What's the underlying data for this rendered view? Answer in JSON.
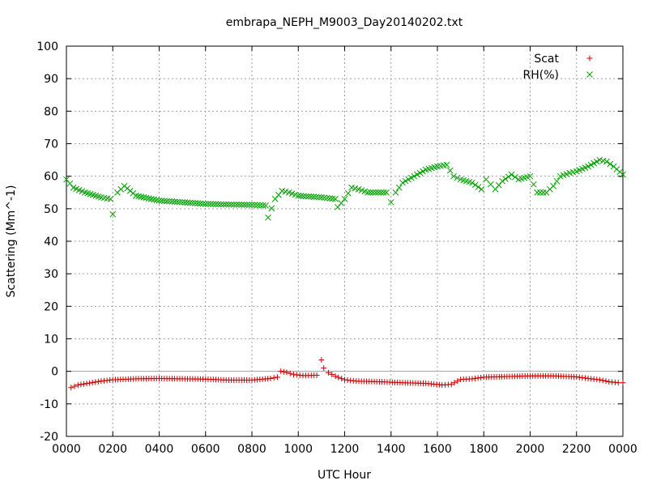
{
  "chart_data": {
    "type": "scatter",
    "title": "embrapa_NEPH_M9003_Day20140202.txt",
    "xlabel": "UTC Hour",
    "ylabel": "Scattering (Mm^-1)",
    "xlim": [
      0,
      24
    ],
    "ylim": [
      -20,
      100
    ],
    "grid": true,
    "legend_position": "top-right",
    "x_ticks": [
      {
        "value": 0,
        "label": "0000"
      },
      {
        "value": 2,
        "label": "0200"
      },
      {
        "value": 4,
        "label": "0400"
      },
      {
        "value": 6,
        "label": "0600"
      },
      {
        "value": 8,
        "label": "0800"
      },
      {
        "value": 10,
        "label": "1000"
      },
      {
        "value": 12,
        "label": "1200"
      },
      {
        "value": 14,
        "label": "1400"
      },
      {
        "value": 16,
        "label": "1600"
      },
      {
        "value": 18,
        "label": "1800"
      },
      {
        "value": 20,
        "label": "2000"
      },
      {
        "value": 22,
        "label": "2200"
      },
      {
        "value": 24,
        "label": "0000"
      }
    ],
    "y_ticks": [
      {
        "value": -20,
        "label": "-20"
      },
      {
        "value": -10,
        "label": "-10"
      },
      {
        "value": 0,
        "label": "0"
      },
      {
        "value": 10,
        "label": "10"
      },
      {
        "value": 20,
        "label": "20"
      },
      {
        "value": 30,
        "label": "30"
      },
      {
        "value": 40,
        "label": "40"
      },
      {
        "value": 50,
        "label": "50"
      },
      {
        "value": 60,
        "label": "60"
      },
      {
        "value": 70,
        "label": "70"
      },
      {
        "value": 80,
        "label": "80"
      },
      {
        "value": 90,
        "label": "90"
      },
      {
        "value": 100,
        "label": "100"
      }
    ],
    "series": [
      {
        "name": "Scat",
        "marker": "+",
        "color": "#cc0000",
        "points": [
          [
            0.2,
            -5
          ],
          [
            0.5,
            -4.2
          ],
          [
            1.0,
            -3.6
          ],
          [
            1.5,
            -3.0
          ],
          [
            2.0,
            -2.6
          ],
          [
            3.0,
            -2.3
          ],
          [
            4.0,
            -2.2
          ],
          [
            5.0,
            -2.3
          ],
          [
            6.0,
            -2.4
          ],
          [
            7.0,
            -2.7
          ],
          [
            8.0,
            -2.7
          ],
          [
            8.8,
            -2.2
          ],
          [
            9.1,
            -1.8
          ],
          [
            9.25,
            0
          ],
          [
            9.5,
            -0.3
          ],
          [
            9.8,
            -1.0
          ],
          [
            10.2,
            -1.3
          ],
          [
            10.8,
            -1.2
          ],
          [
            11.0,
            3.5
          ],
          [
            11.1,
            1.0
          ],
          [
            11.3,
            -0.4
          ],
          [
            11.6,
            -1.5
          ],
          [
            12.0,
            -2.6
          ],
          [
            12.5,
            -3.0
          ],
          [
            13.5,
            -3.2
          ],
          [
            14.5,
            -3.5
          ],
          [
            15.5,
            -3.7
          ],
          [
            16.2,
            -4.2
          ],
          [
            16.6,
            -4.0
          ],
          [
            17.0,
            -2.5
          ],
          [
            17.5,
            -2.3
          ],
          [
            18.0,
            -1.8
          ],
          [
            19.0,
            -1.6
          ],
          [
            20.0,
            -1.4
          ],
          [
            21.0,
            -1.4
          ],
          [
            22.0,
            -1.7
          ],
          [
            22.5,
            -2.2
          ],
          [
            23.0,
            -2.6
          ],
          [
            23.4,
            -3.2
          ],
          [
            23.8,
            -3.5
          ],
          [
            24.0,
            -3.5
          ]
        ]
      },
      {
        "name": "RH(%)",
        "marker": "x",
        "color": "#00a000",
        "points": [
          [
            0.0,
            59
          ],
          [
            0.3,
            56.5
          ],
          [
            0.8,
            55
          ],
          [
            1.5,
            53.5
          ],
          [
            1.9,
            53
          ],
          [
            2.0,
            48.3
          ],
          [
            2.2,
            55
          ],
          [
            2.5,
            57
          ],
          [
            3.0,
            54
          ],
          [
            4.0,
            52.5
          ],
          [
            5.0,
            52
          ],
          [
            6.0,
            51.5
          ],
          [
            7.0,
            51.3
          ],
          [
            8.0,
            51.2
          ],
          [
            8.6,
            51
          ],
          [
            8.7,
            47.3
          ],
          [
            9.0,
            53
          ],
          [
            9.3,
            55.5
          ],
          [
            9.6,
            55
          ],
          [
            10.0,
            54
          ],
          [
            11.0,
            53.5
          ],
          [
            11.6,
            53
          ],
          [
            11.7,
            50.5
          ],
          [
            12.0,
            53
          ],
          [
            12.3,
            56.5
          ],
          [
            12.6,
            56
          ],
          [
            13.0,
            55
          ],
          [
            13.8,
            55
          ],
          [
            14.0,
            52
          ],
          [
            14.2,
            55
          ],
          [
            14.5,
            58
          ],
          [
            15.0,
            60
          ],
          [
            15.5,
            62
          ],
          [
            16.0,
            63
          ],
          [
            16.4,
            63.5
          ],
          [
            16.7,
            60
          ],
          [
            17.0,
            59
          ],
          [
            17.5,
            58
          ],
          [
            17.9,
            56
          ],
          [
            18.1,
            59
          ],
          [
            18.3,
            57.5
          ],
          [
            18.5,
            56
          ],
          [
            18.8,
            58.5
          ],
          [
            19.2,
            60.5
          ],
          [
            19.5,
            59
          ],
          [
            20.0,
            60
          ],
          [
            20.3,
            55
          ],
          [
            20.7,
            55
          ],
          [
            21.0,
            57
          ],
          [
            21.3,
            60
          ],
          [
            21.7,
            61
          ],
          [
            22.0,
            61.5
          ],
          [
            22.5,
            63
          ],
          [
            23.0,
            65
          ],
          [
            23.3,
            64.5
          ],
          [
            23.6,
            63
          ],
          [
            24.0,
            60.5
          ]
        ]
      }
    ]
  }
}
